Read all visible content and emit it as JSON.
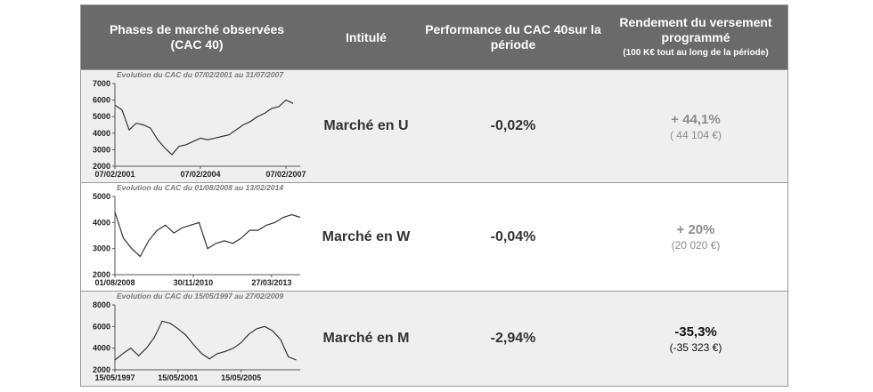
{
  "table": {
    "headers": [
      "Phases de marché observées (CAC 40)",
      "Intitulé",
      "Performance du CAC 40sur la période",
      "Rendement du versement programmé",
      "(100 K€ tout au long de la période)"
    ],
    "rows": [
      {
        "chart": {
          "type": "line",
          "title": "Evolution du CAC du 07/02/2001 au 31/07/2007",
          "color": "#333333",
          "values": [
            5700,
            5400,
            4200,
            4600,
            4500,
            4300,
            3600,
            3100,
            2700,
            3200,
            3300,
            3500,
            3700,
            3600,
            3700,
            3800,
            3900,
            4200,
            4500,
            4700,
            5000,
            5200,
            5500,
            5600,
            6000,
            5800
          ],
          "xlim": [
            0,
            26
          ],
          "xticks": [
            {
              "value": 0,
              "label": "07/02/2001"
            },
            {
              "value": 12,
              "label": "07/02/2004"
            },
            {
              "value": 24,
              "label": "07/02/2007"
            }
          ],
          "ylim": [
            2000,
            7000
          ],
          "yticks": [
            2000,
            3000,
            4000,
            5000,
            6000,
            7000
          ]
        },
        "label": "Marché en U",
        "performance": "-0,02%",
        "yield": "+ 44,1%",
        "amount": "( 44 104 €)"
      },
      {
        "chart": {
          "type": "line",
          "title": "Evolution du CAC du 01/08/2008 au 13/02/2014",
          "color": "#333333",
          "values": [
            4400,
            3400,
            3000,
            2700,
            3300,
            3700,
            3900,
            3600,
            3800,
            3900,
            4000,
            3000,
            3200,
            3300,
            3200,
            3400,
            3700,
            3700,
            3900,
            4000,
            4200,
            4300,
            4200
          ],
          "xlim": [
            0,
            22
          ],
          "xticks": [
            {
              "value": 0,
              "label": "01/08/2008"
            },
            {
              "value": 9.3,
              "label": "30/11/2010"
            },
            {
              "value": 18.6,
              "label": "27/03/2013"
            }
          ],
          "ylim": [
            2000,
            5000
          ],
          "yticks": [
            2000,
            3000,
            4000,
            5000
          ]
        },
        "label": "Marché en W",
        "performance": "-0,04%",
        "yield": "+ 20%",
        "amount": "(20 020 €)"
      },
      {
        "chart": {
          "type": "line",
          "title": "Evolution du CAC du 15/05/1997 au 27/02/2009",
          "color": "#333333",
          "values": [
            2900,
            3500,
            4000,
            3300,
            4000,
            5000,
            6500,
            6300,
            5800,
            5200,
            4300,
            3500,
            3000,
            3500,
            3700,
            4000,
            4500,
            5300,
            5800,
            6000,
            5600,
            4800,
            3200,
            2900
          ],
          "xlim": [
            0,
            23.5
          ],
          "xticks": [
            {
              "value": 0,
              "label": "15/05/1997"
            },
            {
              "value": 8,
              "label": "15/05/2001"
            },
            {
              "value": 16,
              "label": "15/05/2005"
            }
          ],
          "ylim": [
            2000,
            8000
          ],
          "yticks": [
            2000,
            4000,
            6000,
            8000
          ]
        },
        "label": "Marché en M",
        "performance": "-2,94%",
        "yield": "-35,3%",
        "amount": "(-35 323 €)"
      }
    ]
  }
}
